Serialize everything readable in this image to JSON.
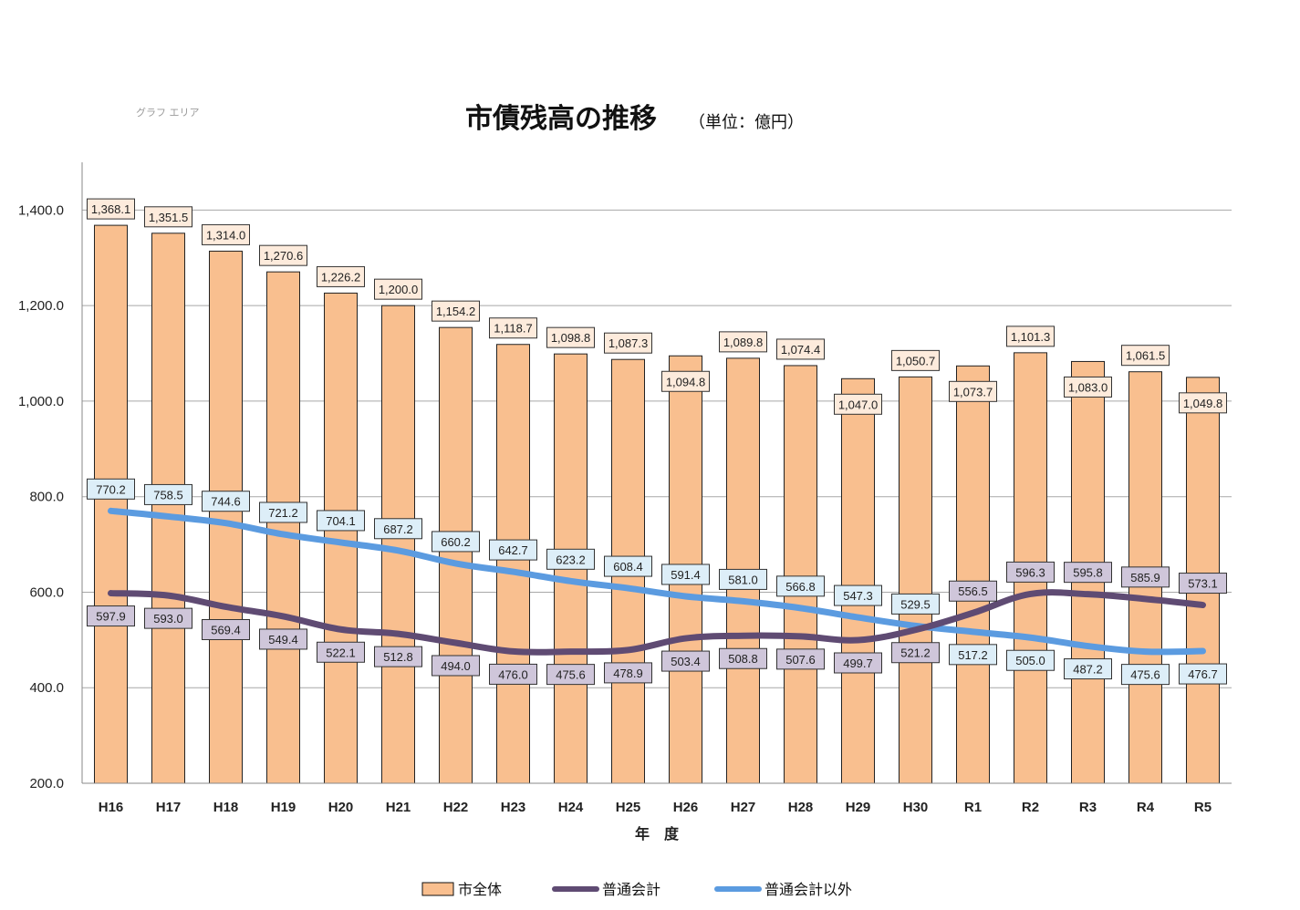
{
  "chart_data": {
    "type": "bar+line",
    "title": "市債残高の推移",
    "unit": "（単位：億円）",
    "area_tag": "グラフ エリア",
    "xlabel": "年　度",
    "ylabel": "",
    "ylim": [
      200,
      1500
    ],
    "yticks": [
      200,
      400,
      600,
      800,
      1000,
      1200,
      1400
    ],
    "ytick_labels": [
      "200.0",
      "400.0",
      "600.0",
      "800.0",
      "1,000.0",
      "1,200.0",
      "1,400.0"
    ],
    "categories": [
      "H16",
      "H17",
      "H18",
      "H19",
      "H20",
      "H21",
      "H22",
      "H23",
      "H24",
      "H25",
      "H26",
      "H27",
      "H28",
      "H29",
      "H30",
      "R1",
      "R2",
      "R3",
      "R4",
      "R5"
    ],
    "series": [
      {
        "name": "市全体",
        "kind": "bar",
        "color": "#F9BF8F",
        "label_bg": "#FDEBDC",
        "values": [
          1368.1,
          1351.5,
          1314.0,
          1270.6,
          1226.2,
          1200.0,
          1154.2,
          1118.7,
          1098.8,
          1087.3,
          1094.8,
          1089.8,
          1074.4,
          1047.0,
          1050.7,
          1073.7,
          1101.3,
          1083.0,
          1061.5,
          1049.8
        ],
        "labels": [
          "1,368.1",
          "1,351.5",
          "1,314.0",
          "1,270.6",
          "1,226.2",
          "1,200.0",
          "1,154.2",
          "1,118.7",
          "1,098.8",
          "1,087.3",
          "1,094.8",
          "1,089.8",
          "1,074.4",
          "1,047.0",
          "1,050.7",
          "1,073.7",
          "1,101.3",
          "1,083.0",
          "1,061.5",
          "1,049.8"
        ],
        "label_pos": [
          "above",
          "above",
          "above",
          "above",
          "above",
          "above",
          "above",
          "above",
          "above",
          "above",
          "below",
          "above",
          "above",
          "below",
          "above",
          "below",
          "above",
          "below",
          "above",
          "below"
        ]
      },
      {
        "name": "普通会計",
        "kind": "line",
        "color": "#5F4B73",
        "label_bg": "#CFC6DA",
        "values": [
          597.9,
          593.0,
          569.4,
          549.4,
          522.1,
          512.8,
          494.0,
          476.0,
          475.6,
          478.9,
          503.4,
          508.8,
          507.6,
          499.7,
          521.2,
          556.5,
          596.3,
          595.8,
          585.9,
          573.1
        ],
        "labels": [
          "597.9",
          "593.0",
          "569.4",
          "549.4",
          "522.1",
          "512.8",
          "494.0",
          "476.0",
          "475.6",
          "478.9",
          "503.4",
          "508.8",
          "507.6",
          "499.7",
          "521.2",
          "556.5",
          "596.3",
          "595.8",
          "585.9",
          "573.1"
        ],
        "label_pos": [
          "below",
          "below",
          "below",
          "below",
          "below",
          "below",
          "below",
          "below",
          "below",
          "below",
          "below",
          "below",
          "below",
          "below",
          "below",
          "above",
          "above",
          "above",
          "above",
          "above"
        ]
      },
      {
        "name": "普通会計以外",
        "kind": "line",
        "color": "#5B9BE0",
        "label_bg": "#DDEEF8",
        "values": [
          770.2,
          758.5,
          744.6,
          721.2,
          704.1,
          687.2,
          660.2,
          642.7,
          623.2,
          608.4,
          591.4,
          581.0,
          566.8,
          547.3,
          529.5,
          517.2,
          505.0,
          487.2,
          475.6,
          476.7
        ],
        "labels": [
          "770.2",
          "758.5",
          "744.6",
          "721.2",
          "704.1",
          "687.2",
          "660.2",
          "642.7",
          "623.2",
          "608.4",
          "591.4",
          "581.0",
          "566.8",
          "547.3",
          "529.5",
          "517.2",
          "505.0",
          "487.2",
          "475.6",
          "476.7"
        ],
        "label_pos": [
          "above",
          "above",
          "above",
          "above",
          "above",
          "above",
          "above",
          "above",
          "above",
          "above",
          "above",
          "above",
          "above",
          "above",
          "above",
          "below",
          "below",
          "below",
          "below",
          "below"
        ]
      }
    ],
    "legend": {
      "position": "bottom",
      "items": [
        "市全体",
        "普通会計",
        "普通会計以外"
      ]
    }
  }
}
